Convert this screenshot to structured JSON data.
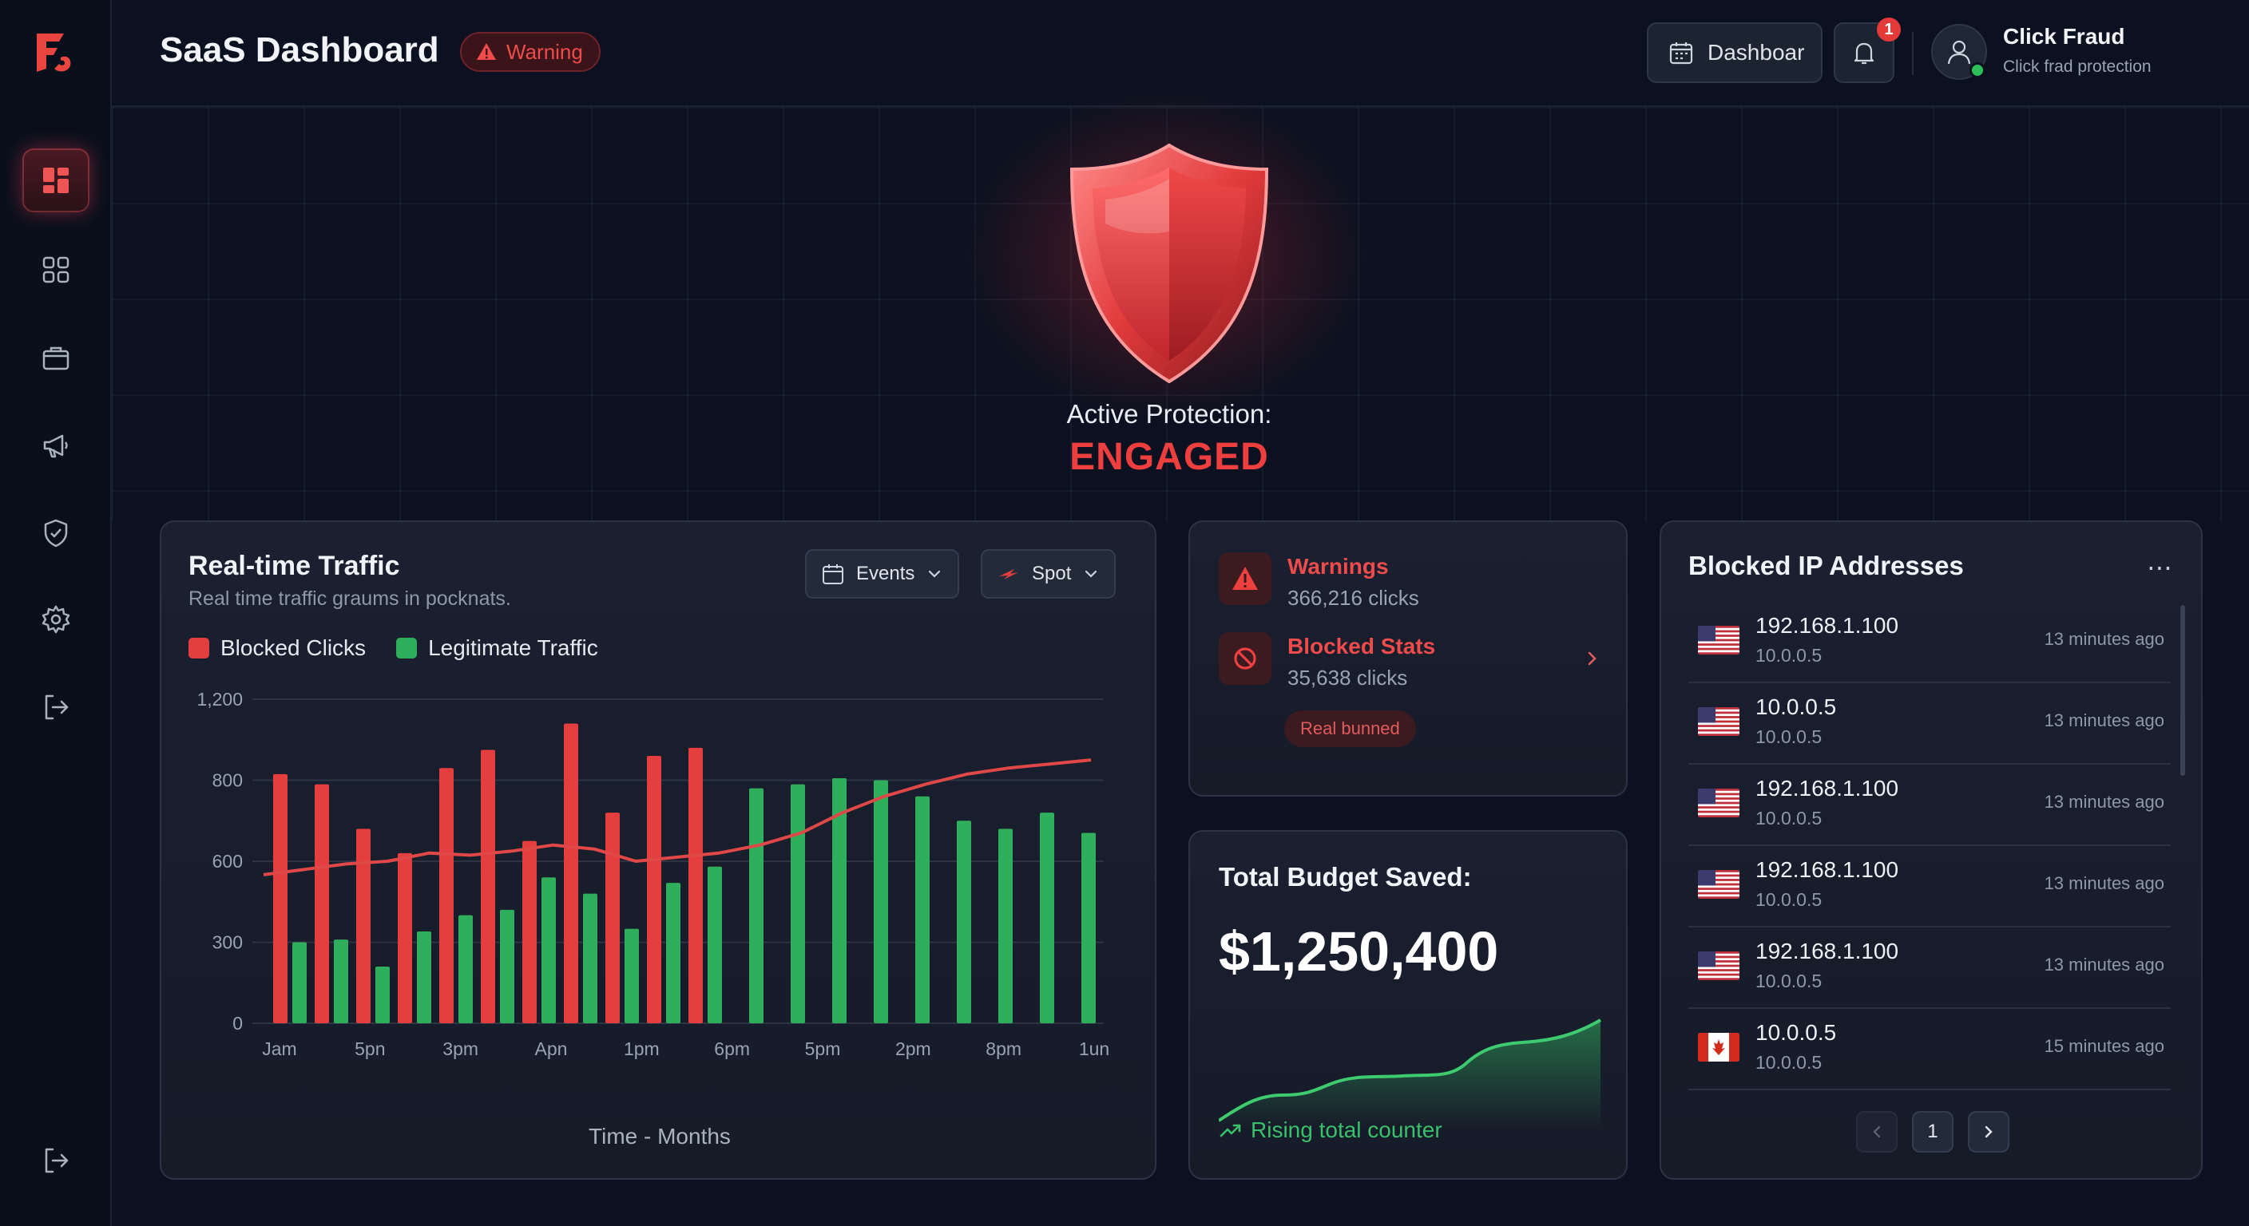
{
  "app": {
    "title": "SaaS Dashboard",
    "badge": "Warning"
  },
  "header": {
    "dashboard_button": "Dashboar",
    "notification_count": "1",
    "user_name": "Click Fraud",
    "user_subtitle": "Click frad protection"
  },
  "sidebar": {
    "items": [
      {
        "icon": "dashboard-icon",
        "active": true
      },
      {
        "icon": "grid-icon"
      },
      {
        "icon": "briefcase-icon"
      },
      {
        "icon": "megaphone-icon"
      },
      {
        "icon": "shield-check-icon"
      },
      {
        "icon": "settings-icon"
      },
      {
        "icon": "logout-icon"
      }
    ],
    "bottom_icon": "logout-icon"
  },
  "hero": {
    "label": "Active Protection:",
    "state": "ENGAGED"
  },
  "traffic": {
    "title": "Real-time Traffic",
    "subtitle": "Real time traffic graums in pocknats.",
    "events_select": "Events",
    "spot_select": "Spot",
    "legend_blocked": "Blocked Clicks",
    "legend_legit": "Legitimate Traffic",
    "x_title": "Time - Months"
  },
  "chart_data": {
    "type": "bar",
    "y_ticks": [
      "0",
      "300",
      "600",
      "800",
      "1,200"
    ],
    "x_ticks": [
      "Jam",
      "5pn",
      "3pm",
      "Apn",
      "1pm",
      "6pm",
      "5pm",
      "2pm",
      "8pm",
      "1un"
    ],
    "series": [
      {
        "name": "Blocked Clicks",
        "color": "#e53e3e",
        "values": [
          830,
          790,
          680,
          620,
          860,
          950,
          650,
          1080,
          720,
          920,
          960,
          0,
          0,
          0,
          0,
          0,
          0,
          0,
          0,
          0
        ]
      },
      {
        "name": "Legitimate Traffic",
        "color": "#2fae5c",
        "values": [
          300,
          310,
          210,
          340,
          400,
          420,
          540,
          480,
          350,
          520,
          580,
          780,
          790,
          810,
          800,
          760,
          700,
          680,
          720,
          670
        ]
      }
    ],
    "trend": [
      550,
      570,
      590,
      600,
      620,
      615,
      625,
      640,
      630,
      600,
      610,
      620,
      640,
      670,
      720,
      760,
      790,
      830,
      860,
      880,
      900
    ]
  },
  "warnings": {
    "warnings_label": "Warnings",
    "warnings_value": "366,216 clicks",
    "blocked_label": "Blocked Stats",
    "blocked_value": "35,638 clicks",
    "pill": "Real bunned"
  },
  "budget": {
    "title": "Total Budget Saved:",
    "value": "$1,250,400",
    "footer": "Rising total counter"
  },
  "blocked_ips": {
    "title": "Blocked IP Addresses",
    "rows": [
      {
        "ip": "192.168.1.100",
        "sub": "10.0.0.5",
        "time": "13 minutes ago",
        "flag": "us"
      },
      {
        "ip": "10.0.0.5",
        "sub": "10.0.0.5",
        "time": "13 minutes ago",
        "flag": "us"
      },
      {
        "ip": "192.168.1.100",
        "sub": "10.0.0.5",
        "time": "13 minutes ago",
        "flag": "us"
      },
      {
        "ip": "192.168.1.100",
        "sub": "10.0.0.5",
        "time": "13 minutes ago",
        "flag": "us"
      },
      {
        "ip": "192.168.1.100",
        "sub": "10.0.0.5",
        "time": "13 minutes ago",
        "flag": "us"
      },
      {
        "ip": "10.0.0.5",
        "sub": "10.0.0.5",
        "time": "15 minutes ago",
        "flag": "ca"
      }
    ],
    "page": "1"
  }
}
